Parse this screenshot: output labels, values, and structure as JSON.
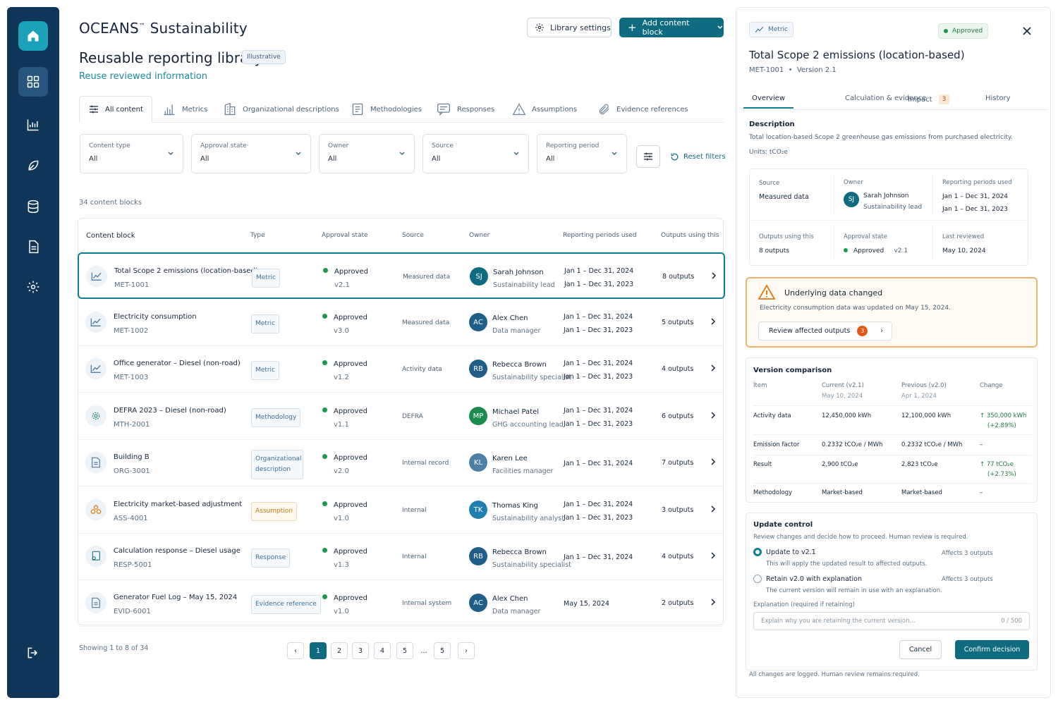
{
  "app": {
    "brand": "OCEANS",
    "brand_mark": "™",
    "brand_suffix": " Sustainability",
    "page_title": "Reusable reporting library",
    "tag": "Illustrative",
    "subtitle": "Reuse reviewed information"
  },
  "toolbar": {
    "library_settings": "Library settings",
    "add_block": "Add content block"
  },
  "tabs": [
    {
      "label": "All content",
      "icon": "list-filter-icon"
    },
    {
      "label": "Metrics",
      "icon": "bar-chart-icon"
    },
    {
      "label": "Organizational descriptions",
      "icon": "building-icon"
    },
    {
      "label": "Methodologies",
      "icon": "document-icon"
    },
    {
      "label": "Responses",
      "icon": "message-icon"
    },
    {
      "label": "Assumptions",
      "icon": "warning-icon"
    },
    {
      "label": "Evidence references",
      "icon": "paperclip-icon"
    }
  ],
  "filters": [
    {
      "label": "Content type",
      "value": "All"
    },
    {
      "label": "Approval state",
      "value": "All"
    },
    {
      "label": "Owner",
      "value": "All"
    },
    {
      "label": "Source",
      "value": "All"
    },
    {
      "label": "Reporting period",
      "value": "All"
    }
  ],
  "reset_filters": "Reset filters",
  "count": "34 content blocks",
  "table": {
    "headers": [
      "Content block",
      "Type",
      "Approval state",
      "Source",
      "Owner",
      "Reporting periods used",
      "Outputs using this"
    ],
    "rows": [
      {
        "name": "Total Scope 2 emissions (location-based)",
        "id": "MET-1001",
        "type": "Metric",
        "approval": "Approved",
        "version": "v2.1",
        "source": "Measured data",
        "initials": "SJ",
        "avatar_color": "#0f6c80",
        "owner": "Sarah Johnson",
        "role": "Sustainability lead",
        "periods": [
          "Jan 1 – Dec 31, 2024",
          "Jan 1 – Dec 31, 2023"
        ],
        "outputs": "8 outputs",
        "icon": "line-chart-icon"
      },
      {
        "name": "Electricity consumption",
        "id": "MET-1002",
        "type": "Metric",
        "approval": "Approved",
        "version": "v3.0",
        "source": "Measured data",
        "initials": "AC",
        "avatar_color": "#1f5e88",
        "owner": "Alex Chen",
        "role": "Data manager",
        "periods": [
          "Jan 1 – Dec 31, 2024",
          "Jan 1 – Dec 31, 2023"
        ],
        "outputs": "5 outputs",
        "icon": "line-chart-icon"
      },
      {
        "name": "Office generator – Diesel (non-road)",
        "id": "MET-1003",
        "type": "Metric",
        "approval": "Approved",
        "version": "v1.2",
        "source": "Activity data",
        "initials": "RB",
        "avatar_color": "#1f5e88",
        "owner": "Rebecca Brown",
        "role": "Sustainability specialist",
        "periods": [
          "Jan 1 – Dec 31, 2024",
          "Jan 1 – Dec 31, 2023"
        ],
        "outputs": "4 outputs",
        "icon": "line-chart-icon"
      },
      {
        "name": "DEFRA 2023 – Diesel (non-road)",
        "id": "MTH-2001",
        "type": "Methodology",
        "approval": "Approved",
        "version": "v1.1",
        "source": "DEFRA",
        "initials": "MP",
        "avatar_color": "#1b8a4b",
        "owner": "Michael Patel",
        "role": "GHG accounting lead",
        "periods": [
          "Jan 1 – Dec 31, 2024",
          "Jan 1 – Dec 31, 2023"
        ],
        "outputs": "6 outputs",
        "icon": "gear-network-icon"
      },
      {
        "name": "Building B",
        "id": "ORG-3001",
        "type": "Organizational description",
        "approval": "Approved",
        "version": "v2.0",
        "source": "Internal record",
        "initials": "KL",
        "avatar_color": "#4f7fa6",
        "owner": "Karen Lee",
        "role": "Facilities manager",
        "periods": [
          "Jan 1 – Dec 31, 2024"
        ],
        "outputs": "7 outputs",
        "icon": "document-icon"
      },
      {
        "name": "Electricity market-based adjustment",
        "id": "ASS-4001",
        "type": "Assumption",
        "approval": "Approved",
        "version": "v1.0",
        "source": "Internal",
        "initials": "TK",
        "avatar_color": "#1f7fb0",
        "owner": "Thomas King",
        "role": "Sustainability analyst",
        "periods": [
          "Jan 1 – Dec 31, 2024",
          "Jan 1 – Dec 31, 2023"
        ],
        "outputs": "3 outputs",
        "icon": "shapes-icon"
      },
      {
        "name": "Calculation response – Diesel usage",
        "id": "RESP-5001",
        "type": "Response",
        "approval": "Approved",
        "version": "v1.3",
        "source": "Internal",
        "initials": "RB",
        "avatar_color": "#1f5e88",
        "owner": "Rebecca Brown",
        "role": "Sustainability specialist",
        "periods": [
          "Jan 1 – Dec 31, 2024"
        ],
        "outputs": "4 outputs",
        "icon": "response-icon"
      },
      {
        "name": "Generator Fuel Log – May 15, 2024",
        "id": "EVID-6001",
        "type": "Evidence reference",
        "approval": "Approved",
        "version": "v1.0",
        "source": "Internal system",
        "initials": "AC",
        "avatar_color": "#1f5e88",
        "owner": "Alex Chen",
        "role": "Data manager",
        "periods": [
          "May 15, 2024"
        ],
        "outputs": "2 outputs",
        "icon": "document-icon"
      }
    ]
  },
  "pagination": {
    "showing": "Showing 1 to 8 of 34",
    "pages": [
      "1",
      "2",
      "3",
      "4",
      "5",
      "…",
      "5"
    ]
  },
  "panel": {
    "type_chip": "Metric",
    "status_chip": "Approved",
    "title": "Total Scope 2 emissions (location-based)",
    "meta_id": "MET-1001",
    "meta_sep": "•",
    "meta_version": "Version 2.1",
    "tabs": [
      "Overview",
      "Calculation & evidence",
      "Impact",
      "History"
    ],
    "impact_badge": "3",
    "description_title": "Description",
    "description": "Total location-based Scope 2 greenhouse gas emissions from purchased electricity.",
    "units": "Units: tCO₂e",
    "info": {
      "source_label": "Source",
      "source_value": "Measured data",
      "owner_label": "Owner",
      "owner_initials": "SJ",
      "owner_name": "Sarah Johnson",
      "owner_role": "Sustainability lead",
      "periods_label": "Reporting periods used",
      "period_1": "Jan 1 – Dec 31, 2024",
      "period_2": "Jan 1 – Dec 31, 2023",
      "outputs_label": "Outputs using this",
      "outputs_value": "8 outputs",
      "approval_label": "Approval state",
      "approval_value": "Approved",
      "approval_version": "v2.1",
      "reviewed_label": "Last reviewed",
      "reviewed_value": "May 10, 2024"
    },
    "warning": {
      "title": "Underlying data changed",
      "text": "Electricity consumption data was updated on May 15, 2024.",
      "button": "Review affected outputs",
      "badge": "3"
    },
    "version_comparison": {
      "title": "Version comparison",
      "headers": [
        "Item",
        "Current (v2.1)",
        "Previous (v2.0)",
        "Change"
      ],
      "current_date": "May 10, 2024",
      "previous_date": "Apr 1, 2024",
      "rows": [
        {
          "item": "Activity data",
          "current": "12,450,000 kWh",
          "previous": "12,100,000 kWh",
          "change": "↑ 350,000 kWh",
          "change2": "(+2.89%)"
        },
        {
          "item": "Emission factor",
          "current": "0.2332 tCO₂e / MWh",
          "previous": "0.2332 tCO₂e / MWh",
          "change": "–",
          "change2": ""
        },
        {
          "item": "Result",
          "current": "2,900 tCO₂e",
          "previous": "2,823 tCO₂e",
          "change": "↑ 77 tCO₂e",
          "change2": "(+2.73%)"
        },
        {
          "item": "Methodology",
          "current": "Market-based",
          "previous": "Market-based",
          "change": "–",
          "change2": ""
        }
      ]
    },
    "update_control": {
      "title": "Update control",
      "text": "Review changes and decide how to proceed. Human review is required.",
      "opt1": "Update to v2.1",
      "opt1_desc": "This will apply the updated result to affected outputs.",
      "opt1_affects": "Affects  3  outputs",
      "opt2": "Retain v2.0 with explanation",
      "opt2_desc": "The current version will remain in use with an explanation.",
      "opt2_affects": "Affects  3  outputs",
      "expl_label": "Explanation (required if retaining)",
      "expl_placeholder": "Explain why you are retaining the current version...",
      "expl_counter": "0 / 500",
      "cancel": "Cancel",
      "confirm": "Confirm decision"
    },
    "footer": "All changes are logged. Human review remains required."
  },
  "colors": {
    "rail": "#0f3558",
    "accent": "#0f6c80",
    "approved": "#1b9a4b",
    "warning": "#f1b06b"
  }
}
